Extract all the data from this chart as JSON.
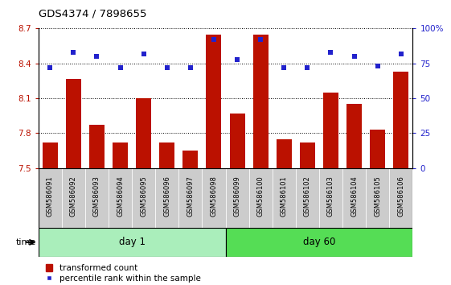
{
  "title": "GDS4374 / 7898655",
  "samples": [
    "GSM586091",
    "GSM586092",
    "GSM586093",
    "GSM586094",
    "GSM586095",
    "GSM586096",
    "GSM586097",
    "GSM586098",
    "GSM586099",
    "GSM586100",
    "GSM586101",
    "GSM586102",
    "GSM586103",
    "GSM586104",
    "GSM586105",
    "GSM586106"
  ],
  "bar_values": [
    7.72,
    8.27,
    7.87,
    7.72,
    8.1,
    7.72,
    7.65,
    8.65,
    7.97,
    8.65,
    7.75,
    7.72,
    8.15,
    8.05,
    7.83,
    8.33
  ],
  "percentile_values": [
    72,
    83,
    80,
    72,
    82,
    72,
    72,
    92,
    78,
    92,
    72,
    72,
    83,
    80,
    73,
    82
  ],
  "day1_count": 8,
  "day60_count": 8,
  "ylim_left": [
    7.5,
    8.7
  ],
  "ylim_right": [
    0,
    100
  ],
  "yticks_left": [
    7.5,
    7.8,
    8.1,
    8.4,
    8.7
  ],
  "yticks_right": [
    0,
    25,
    50,
    75,
    100
  ],
  "ytick_labels_left": [
    "7.5",
    "7.8",
    "8.1",
    "8.4",
    "8.7"
  ],
  "ytick_labels_right": [
    "0",
    "25",
    "50",
    "75",
    "100%"
  ],
  "bar_color": "#bb1100",
  "scatter_color": "#2222cc",
  "day1_color": "#aaeebb",
  "day60_color": "#55dd55",
  "xtick_bg_color": "#cccccc",
  "plot_bg": "#ffffff",
  "grid_color": "#000000",
  "legend_bar_label": "transformed count",
  "legend_scatter_label": "percentile rank within the sample",
  "time_label": "time",
  "day1_label": "day 1",
  "day60_label": "day 60"
}
